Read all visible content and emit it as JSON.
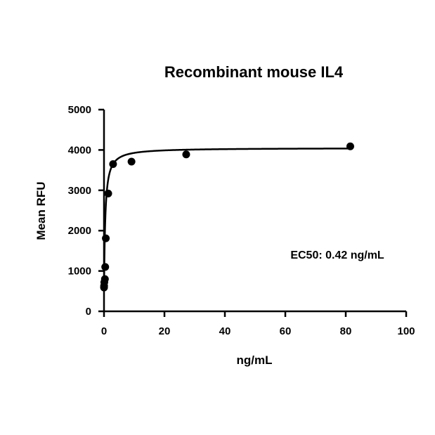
{
  "chart_data": {
    "type": "scatter",
    "title": "Recombinant mouse IL4",
    "xlabel": "ng/mL",
    "ylabel": "Mean RFU",
    "xlim": [
      0,
      100
    ],
    "ylim": [
      0,
      5000
    ],
    "xticks": [
      0,
      20,
      40,
      60,
      80,
      100
    ],
    "yticks": [
      0,
      1000,
      2000,
      3000,
      4000,
      5000
    ],
    "grid": false,
    "legend": "none",
    "annotation": "EC50: 0.42 ng/mL",
    "series": [
      {
        "type": "scatter",
        "color": "#000000",
        "points": [
          {
            "x": 0.01,
            "y": 590
          },
          {
            "x": 0.03,
            "y": 630
          },
          {
            "x": 0.1,
            "y": 720
          },
          {
            "x": 0.3,
            "y": 800
          },
          {
            "x": 0.4,
            "y": 1100
          },
          {
            "x": 0.6,
            "y": 1810
          },
          {
            "x": 1.4,
            "y": 2920
          },
          {
            "x": 3.0,
            "y": 3650
          },
          {
            "x": 9.1,
            "y": 3710
          },
          {
            "x": 27.2,
            "y": 3890
          },
          {
            "x": 81.5,
            "y": 4090
          }
        ]
      },
      {
        "type": "fit-curve",
        "model": "4PL",
        "color": "#000000",
        "bottom": 500,
        "top": 4050,
        "ec50": 0.42,
        "hill": 1.05
      }
    ]
  }
}
